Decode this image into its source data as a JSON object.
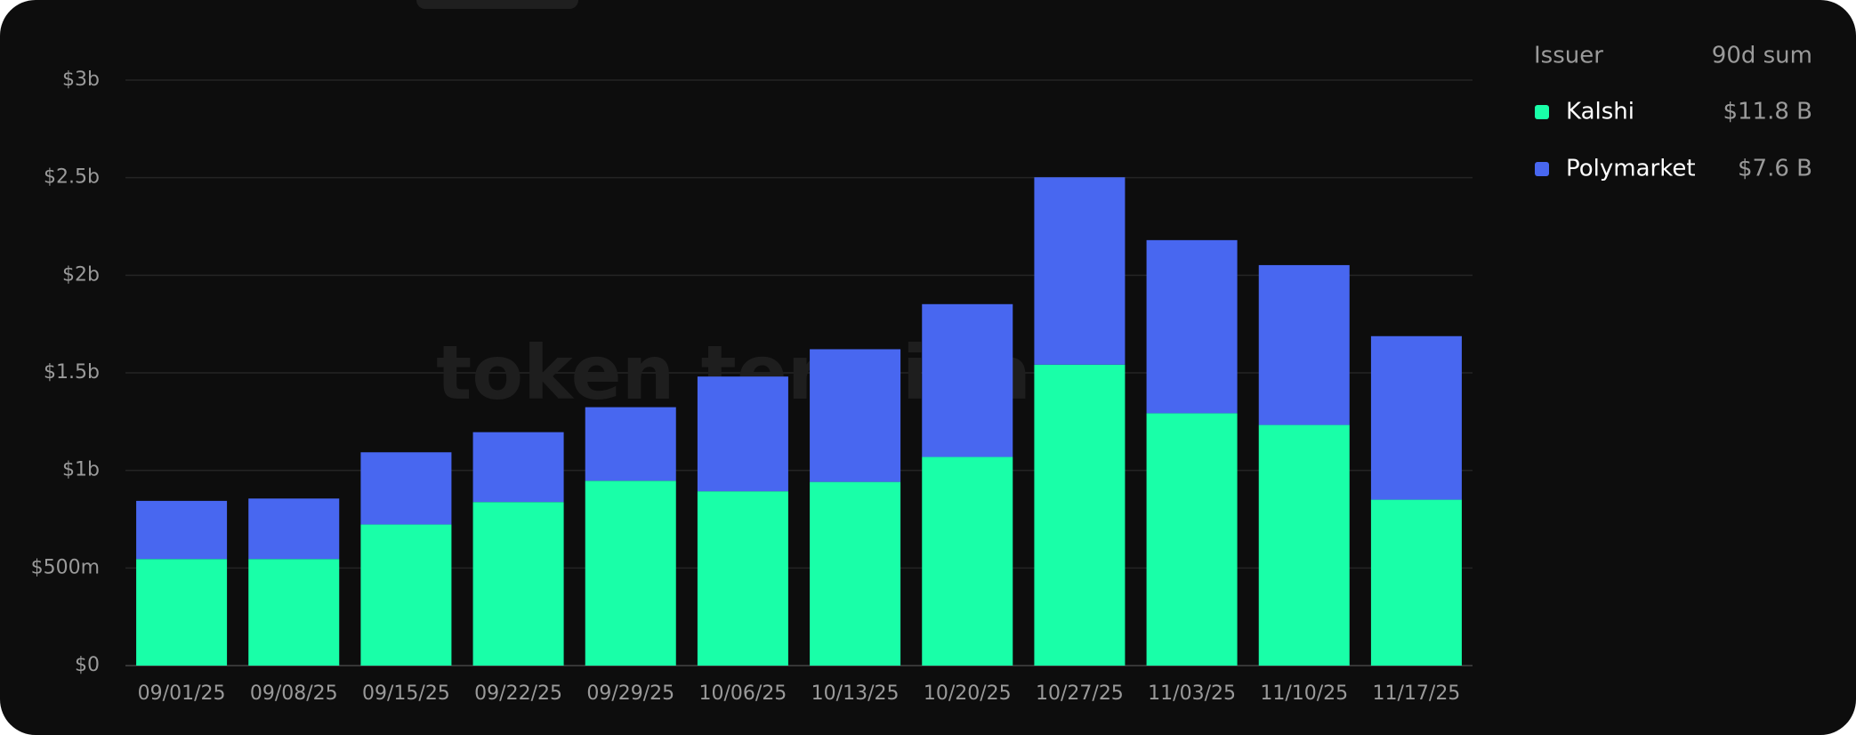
{
  "chart_data": {
    "type": "bar",
    "stacked": true,
    "watermark": "token terminal_",
    "categories": [
      "09/01/25",
      "09/08/25",
      "09/15/25",
      "09/22/25",
      "09/29/25",
      "10/06/25",
      "10/13/25",
      "10/20/25",
      "10/27/25",
      "11/03/25",
      "11/10/25",
      "11/17/25"
    ],
    "series": [
      {
        "name": "Kalshi",
        "color": "#19ffa8",
        "sum_label": "$11.8 B",
        "values": [
          546000000,
          546000000,
          723000000,
          838000000,
          947000000,
          893000000,
          941000000,
          1069000000,
          1542000000,
          1293000000,
          1233000000,
          850000000
        ]
      },
      {
        "name": "Polymarket",
        "color": "#4867f0",
        "sum_label": "$7.6 B",
        "values": [
          298000000,
          310000000,
          370000000,
          358000000,
          377000000,
          588000000,
          680000000,
          783000000,
          960000000,
          887000000,
          819000000,
          838000000
        ]
      }
    ],
    "ylim": [
      0,
      3000000000
    ],
    "yticks": [
      {
        "value": 0,
        "label": "$0"
      },
      {
        "value": 500000000,
        "label": "$500m"
      },
      {
        "value": 1000000000,
        "label": "$1b"
      },
      {
        "value": 1500000000,
        "label": "$1.5b"
      },
      {
        "value": 2000000000,
        "label": "$2b"
      },
      {
        "value": 2500000000,
        "label": "$2.5b"
      },
      {
        "value": 3000000000,
        "label": "$3b"
      }
    ],
    "grid": true,
    "legend": {
      "position": "right",
      "header": [
        "Issuer",
        "90d sum"
      ]
    }
  }
}
